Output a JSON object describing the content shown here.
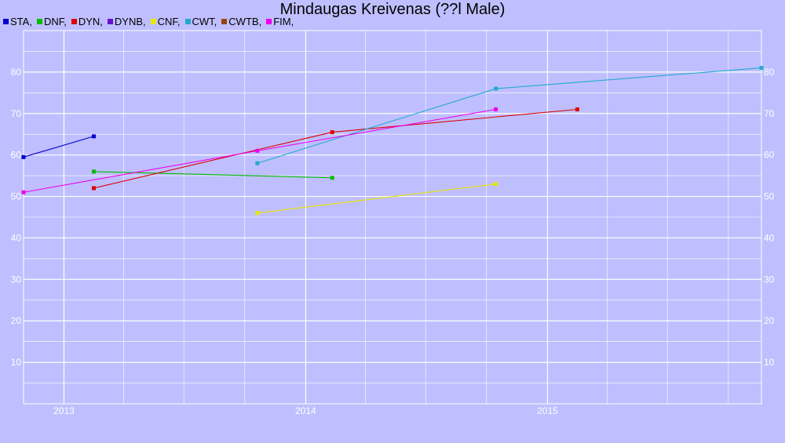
{
  "chart_data": {
    "type": "line",
    "title": "Mindaugas Kreivenas (??l Male)",
    "xlabel": "",
    "ylabel": "",
    "x_ticks": [
      "2013",
      "2014",
      "2015"
    ],
    "y_ticks": [
      10,
      20,
      30,
      40,
      50,
      60,
      70,
      80
    ],
    "xlim": [
      "2012-11-01",
      "2015-11-20"
    ],
    "ylim": [
      0,
      90
    ],
    "grid": true,
    "legend_position": "top-left",
    "series": [
      {
        "name": "STA",
        "color": "#0000cc",
        "points": [
          [
            "2012-11-01",
            59.5
          ],
          [
            "2013-02-15",
            64.5
          ]
        ]
      },
      {
        "name": "DNF",
        "color": "#00bb00",
        "points": [
          [
            "2013-02-15",
            56
          ],
          [
            "2014-02-10",
            54.5
          ]
        ]
      },
      {
        "name": "DYN",
        "color": "#dd0000",
        "points": [
          [
            "2013-02-15",
            52
          ],
          [
            "2014-02-10",
            65.5
          ],
          [
            "2015-02-15",
            71
          ]
        ]
      },
      {
        "name": "DYNB",
        "color": "#6a0fd0",
        "points": []
      },
      {
        "name": "CNF",
        "color": "#e8e800",
        "points": [
          [
            "2013-10-20",
            46
          ],
          [
            "2014-10-15",
            53
          ]
        ]
      },
      {
        "name": "CWT",
        "color": "#22aacc",
        "points": [
          [
            "2013-10-20",
            58
          ],
          [
            "2014-10-15",
            76
          ],
          [
            "2015-11-20",
            81
          ]
        ]
      },
      {
        "name": "CWTB",
        "color": "#994411",
        "points": []
      },
      {
        "name": "FIM",
        "color": "#ee00ee",
        "points": [
          [
            "2012-11-01",
            51
          ],
          [
            "2013-10-20",
            61
          ],
          [
            "2014-10-15",
            71
          ]
        ]
      }
    ]
  }
}
